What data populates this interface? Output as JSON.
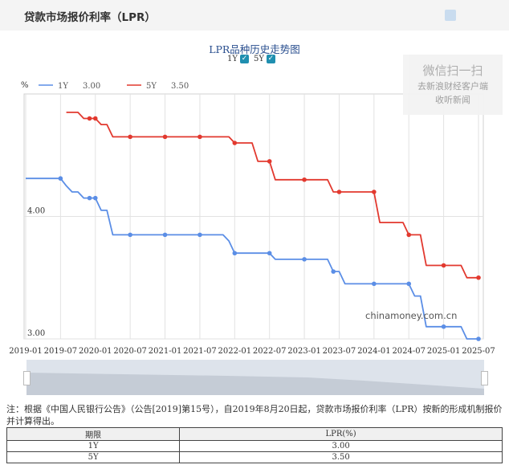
{
  "header": {
    "title": "贷款市场报价利率（LPR）",
    "icon": "share-icon"
  },
  "chart_title": "LPR品种历史走势图",
  "toggles": [
    {
      "label": "1Y",
      "checked": true
    },
    {
      "label": "5Y",
      "checked": true
    }
  ],
  "wechat": {
    "line1": "微信扫一扫",
    "line2": "去新浪财经客户端",
    "line3": "收听新闻"
  },
  "watermark": "chinamoney.com.cn",
  "chart_data": {
    "type": "line",
    "ylabel": "%",
    "ylim": [
      3.0,
      5.0
    ],
    "yticks": [
      {
        "value": 4.0,
        "label": "4.00"
      },
      {
        "value": 3.0,
        "label": "3.00"
      }
    ],
    "xlim": [
      "2019-01",
      "2025-07"
    ],
    "xticks": [
      "2019-01",
      "2019-07",
      "2020-01",
      "2020-07",
      "2021-01",
      "2021-07",
      "2022-01",
      "2022-07",
      "2023-01",
      "2023-07",
      "2024-01",
      "2024-07",
      "2025-01",
      "2025-07"
    ],
    "legend_position": "top-left",
    "series": [
      {
        "name": "1Y",
        "legend_value": "3.00",
        "color": "#5b8ee6",
        "x": [
          "2019-01",
          "2019-04",
          "2019-07",
          "2019-08",
          "2019-09",
          "2019-10",
          "2019-11",
          "2019-12",
          "2020-01",
          "2020-02",
          "2020-03",
          "2020-04",
          "2020-05",
          "2020-07",
          "2021-01",
          "2021-07",
          "2021-11",
          "2021-12",
          "2022-01",
          "2022-02",
          "2022-07",
          "2022-08",
          "2022-09",
          "2023-01",
          "2023-05",
          "2023-06",
          "2023-07",
          "2023-08",
          "2024-01",
          "2024-07",
          "2024-08",
          "2024-09",
          "2024-10",
          "2025-01",
          "2025-04",
          "2025-05",
          "2025-06",
          "2025-07"
        ],
        "values": [
          4.31,
          4.31,
          4.31,
          4.25,
          4.2,
          4.2,
          4.15,
          4.15,
          4.15,
          4.05,
          4.05,
          3.85,
          3.85,
          3.85,
          3.85,
          3.85,
          3.85,
          3.8,
          3.7,
          3.7,
          3.7,
          3.65,
          3.65,
          3.65,
          3.65,
          3.55,
          3.55,
          3.45,
          3.45,
          3.45,
          3.35,
          3.35,
          3.1,
          3.1,
          3.1,
          3.0,
          3.0,
          3.0
        ]
      },
      {
        "name": "5Y",
        "legend_value": "3.50",
        "color": "#e2392f",
        "x": [
          "2019-08",
          "2019-09",
          "2019-10",
          "2019-11",
          "2019-12",
          "2020-01",
          "2020-02",
          "2020-03",
          "2020-04",
          "2020-07",
          "2021-01",
          "2021-07",
          "2021-12",
          "2022-01",
          "2022-02",
          "2022-04",
          "2022-05",
          "2022-06",
          "2022-07",
          "2022-08",
          "2022-09",
          "2023-01",
          "2023-05",
          "2023-06",
          "2023-07",
          "2024-01",
          "2024-02",
          "2024-06",
          "2024-07",
          "2024-08",
          "2024-09",
          "2024-10",
          "2025-01",
          "2025-04",
          "2025-05",
          "2025-06",
          "2025-07"
        ],
        "values": [
          4.85,
          4.85,
          4.85,
          4.8,
          4.8,
          4.8,
          4.75,
          4.75,
          4.65,
          4.65,
          4.65,
          4.65,
          4.65,
          4.6,
          4.6,
          4.6,
          4.45,
          4.45,
          4.45,
          4.3,
          4.3,
          4.3,
          4.3,
          4.2,
          4.2,
          4.2,
          3.95,
          3.95,
          3.85,
          3.85,
          3.85,
          3.6,
          3.6,
          3.6,
          3.5,
          3.5,
          3.5
        ]
      }
    ],
    "markers": {
      "1Y": [
        "2019-07",
        "2019-12",
        "2020-01",
        "2020-07",
        "2021-01",
        "2021-07",
        "2022-01",
        "2022-07",
        "2023-01",
        "2023-06",
        "2024-01",
        "2024-07",
        "2025-01",
        "2025-07"
      ],
      "5Y": [
        "2019-12",
        "2020-01",
        "2020-07",
        "2021-01",
        "2021-07",
        "2022-01",
        "2022-07",
        "2023-01",
        "2023-07",
        "2024-01",
        "2024-07",
        "2025-01",
        "2025-07"
      ]
    }
  },
  "note": "注：根据《中国人民银行公告》（公告[2019]第15号），自2019年8月20日起，贷款市场报价利率（LPR）按新的形成机制报价并计算得出。",
  "table": {
    "headers": [
      "期限",
      "LPR(%)"
    ],
    "rows": [
      [
        "1Y",
        "3.00"
      ],
      [
        "5Y",
        "3.50"
      ]
    ]
  }
}
